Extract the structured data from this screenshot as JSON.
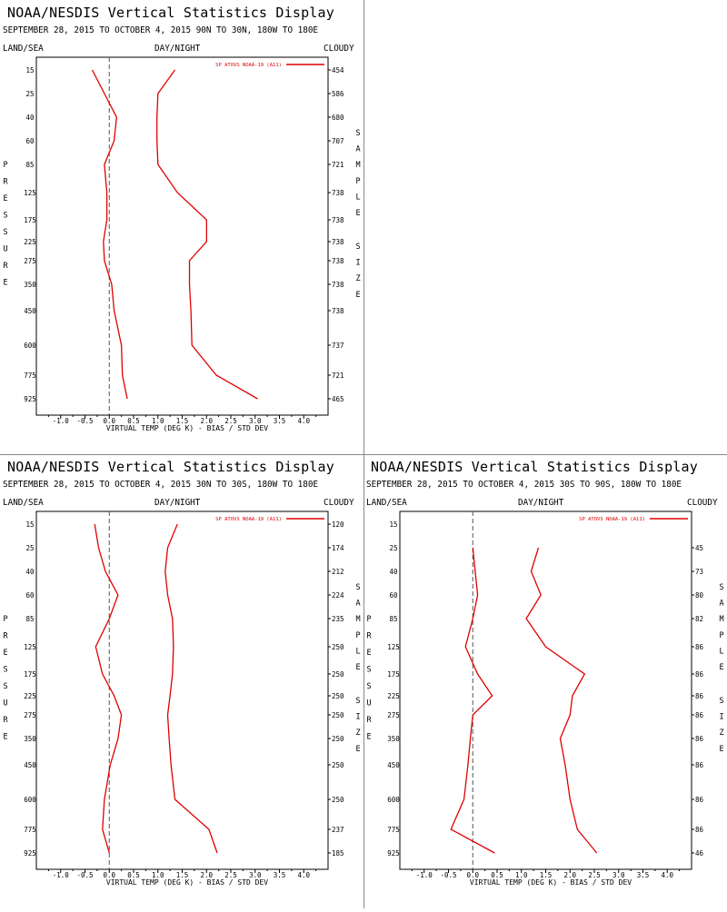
{
  "panels": [
    {
      "title": "NOAA/NESDIS Vertical Statistics Display",
      "subtitle": "SEPTEMBER 28, 2015 TO OCTOBER 4, 2015 90N TO 30N, 180W TO 180E",
      "hdr_left": "LAND/SEA",
      "hdr_mid": "DAY/NIGHT",
      "hdr_right": "CLOUDY",
      "legend": "SP ATOVS NOAA-19 (A11)",
      "xlabel": "VIRTUAL TEMP (DEG K) - BIAS / STD DEV",
      "left_label": "PRESSURE",
      "right_label": "SAMPLE SIZE",
      "pressure": [
        "15",
        "25",
        "40",
        "60",
        "85",
        "125",
        "175",
        "225",
        "275",
        "350",
        "450",
        "600",
        "775",
        "925"
      ],
      "sample_size": [
        "454",
        "586",
        "680",
        "707",
        "721",
        "738",
        "738",
        "738",
        "738",
        "738",
        "738",
        "737",
        "721",
        "465"
      ]
    },
    {
      "title": "NOAA/NESDIS Vertical Statistics Display",
      "subtitle": "SEPTEMBER 28, 2015 TO OCTOBER 4, 2015 30N TO 30S, 180W TO 180E",
      "hdr_left": "LAND/SEA",
      "hdr_mid": "DAY/NIGHT",
      "hdr_right": "CLOUDY",
      "legend": "SP ATOVS NOAA-19 (A11)",
      "xlabel": "VIRTUAL TEMP (DEG K) - BIAS / STD DEV",
      "left_label": "PRESSURE",
      "right_label": "SAMPLE SIZE",
      "pressure": [
        "15",
        "25",
        "40",
        "60",
        "85",
        "125",
        "175",
        "225",
        "275",
        "350",
        "450",
        "600",
        "775",
        "925"
      ],
      "sample_size": [
        "120",
        "174",
        "212",
        "224",
        "235",
        "250",
        "250",
        "250",
        "250",
        "250",
        "250",
        "250",
        "237",
        "185"
      ]
    },
    {
      "title": "NOAA/NESDIS Vertical Statistics Display",
      "subtitle": "SEPTEMBER 28, 2015 TO OCTOBER 4, 2015 30S TO 90S, 180W TO 180E",
      "hdr_left": "LAND/SEA",
      "hdr_mid": "DAY/NIGHT",
      "hdr_right": "CLOUDY",
      "legend": "SP ATOVS NOAA-19 (A11)",
      "xlabel": "VIRTUAL TEMP (DEG K) - BIAS / STD DEV",
      "left_label": "PRESSURE",
      "right_label": "SAMPLE SIZE",
      "pressure": [
        "15",
        "25",
        "40",
        "60",
        "85",
        "125",
        "175",
        "225",
        "275",
        "350",
        "450",
        "600",
        "775",
        "925"
      ],
      "sample_size": [
        "",
        "45",
        "73",
        "80",
        "82",
        "86",
        "86",
        "86",
        "86",
        "86",
        "86",
        "86",
        "86",
        "46"
      ]
    }
  ],
  "colors": {
    "line": "#e00000",
    "axis": "#000000",
    "zero_line": "#555555"
  },
  "chart_data": [
    {
      "type": "line",
      "xlim": [
        -1.5,
        4.5
      ],
      "x_ticks": [
        "-1.0",
        "-0.5",
        "0.0",
        "0.5",
        "1.0",
        "1.5",
        "2.0",
        "2.5",
        "3.0",
        "3.5",
        "4.0"
      ],
      "categories": [
        "15",
        "25",
        "40",
        "60",
        "85",
        "125",
        "175",
        "225",
        "275",
        "350",
        "450",
        "600",
        "775",
        "925"
      ],
      "series": [
        {
          "role": "bias",
          "values": [
            -0.35,
            -0.1,
            0.15,
            0.1,
            -0.1,
            -0.05,
            -0.05,
            -0.12,
            -0.1,
            0.05,
            0.1,
            0.25,
            0.27,
            0.37
          ]
        },
        {
          "role": "stddev",
          "values": [
            1.35,
            1.0,
            0.98,
            0.98,
            1.0,
            1.4,
            2.0,
            2.0,
            1.65,
            1.65,
            1.68,
            1.7,
            2.2,
            3.05
          ]
        }
      ]
    },
    {
      "type": "line",
      "xlim": [
        -1.5,
        4.5
      ],
      "x_ticks": [
        "-1.0",
        "-0.5",
        "0.0",
        "0.5",
        "1.0",
        "1.5",
        "2.0",
        "2.5",
        "3.0",
        "3.5",
        "4.0"
      ],
      "categories": [
        "15",
        "25",
        "40",
        "60",
        "85",
        "125",
        "175",
        "225",
        "275",
        "350",
        "450",
        "600",
        "775",
        "925"
      ],
      "series": [
        {
          "role": "bias",
          "values": [
            -0.3,
            -0.22,
            -0.08,
            0.18,
            0.0,
            -0.28,
            -0.14,
            0.1,
            0.25,
            0.18,
            0.02,
            -0.1,
            -0.14,
            0.0
          ]
        },
        {
          "role": "stddev",
          "values": [
            1.4,
            1.2,
            1.15,
            1.2,
            1.3,
            1.32,
            1.3,
            1.25,
            1.2,
            1.23,
            1.27,
            1.35,
            2.05,
            2.22
          ]
        }
      ]
    },
    {
      "type": "line",
      "xlim": [
        -1.5,
        4.5
      ],
      "x_ticks": [
        "-1.0",
        "-0.5",
        "0.0",
        "0.5",
        "1.0",
        "1.5",
        "2.0",
        "2.5",
        "3.0",
        "3.5",
        "4.0"
      ],
      "categories": [
        "25",
        "40",
        "60",
        "85",
        "125",
        "175",
        "225",
        "275",
        "350",
        "450",
        "600",
        "775",
        "925"
      ],
      "series": [
        {
          "role": "bias",
          "values": [
            0.0,
            0.05,
            0.1,
            0.0,
            -0.15,
            0.1,
            0.4,
            0.0,
            -0.05,
            -0.1,
            -0.18,
            -0.45,
            0.45
          ]
        },
        {
          "role": "stddev",
          "values": [
            1.35,
            1.2,
            1.4,
            1.1,
            1.5,
            2.3,
            2.05,
            2.0,
            1.8,
            1.9,
            2.0,
            2.15,
            2.55
          ]
        }
      ]
    }
  ]
}
